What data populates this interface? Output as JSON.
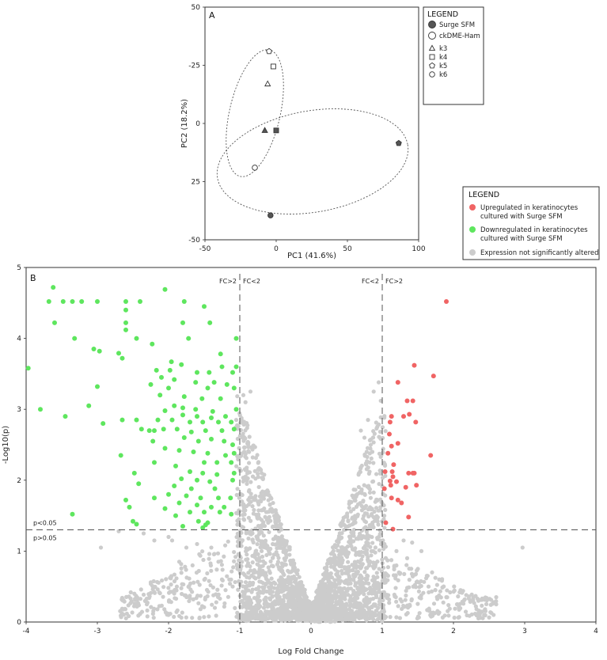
{
  "chart_data": [
    {
      "type": "scatter",
      "panel_label": "A",
      "xlabel": "PC1 (41.6%)",
      "ylabel": "PC2 (18.2%)",
      "xlim": [
        -50,
        100
      ],
      "ylim": [
        -50,
        50
      ],
      "x_ticks": [
        -50,
        0,
        50,
        100
      ],
      "y_ticks": [
        -50,
        -25,
        0,
        25,
        50
      ],
      "x_tick_labels": [
        "-50",
        "0",
        "50",
        "100"
      ],
      "y_tick_labels": [
        "-50",
        "-25",
        "0",
        "25",
        "50"
      ],
      "y_axis_inverted_labels": [
        "-50",
        "25",
        "0",
        "-25",
        "50"
      ],
      "legend": {
        "title": "LEGEND",
        "entries": [
          {
            "label": "Surge SFM",
            "marker": "circle",
            "fill": "filled"
          },
          {
            "label": "ckDME-Ham",
            "marker": "circle",
            "fill": "open"
          },
          {
            "label": "k3",
            "marker": "triangle",
            "fill": "open"
          },
          {
            "label": "k4",
            "marker": "square",
            "fill": "open"
          },
          {
            "label": "k5",
            "marker": "pentagon",
            "fill": "open"
          },
          {
            "label": "k6",
            "marker": "circle-small",
            "fill": "open"
          }
        ]
      },
      "points": [
        {
          "x": -5,
          "y": 31,
          "marker": "pentagon",
          "fill": "open"
        },
        {
          "x": -2,
          "y": 24.5,
          "marker": "square",
          "fill": "open"
        },
        {
          "x": -6,
          "y": 17,
          "marker": "triangle",
          "fill": "open"
        },
        {
          "x": -8,
          "y": -3,
          "marker": "triangle",
          "fill": "filled"
        },
        {
          "x": 0,
          "y": -3,
          "marker": "square",
          "fill": "filled"
        },
        {
          "x": 86,
          "y": -8.5,
          "marker": "pentagon",
          "fill": "filled"
        },
        {
          "x": -15,
          "y": -19,
          "marker": "circle-small",
          "fill": "open"
        },
        {
          "x": -4,
          "y": -39.5,
          "marker": "circle-small",
          "fill": "filled"
        }
      ]
    },
    {
      "type": "scatter",
      "panel_label": "B",
      "xlabel": "Log Fold Change",
      "ylabel": "-Log10(p)",
      "xlim": [
        -4,
        4
      ],
      "ylim": [
        0,
        5
      ],
      "x_ticks": [
        -4,
        -3,
        -2,
        -1,
        0,
        1,
        2,
        3,
        4
      ],
      "y_ticks": [
        0,
        1,
        2,
        3,
        4,
        5
      ],
      "thresholds": {
        "fc_lines": [
          -1,
          1
        ],
        "p_line": 1.3,
        "labels": {
          "left_outer": "FC>2",
          "left_inner": "FC<2",
          "right_inner": "FC<2",
          "right_outer": "FC>2",
          "p_above": "p<0.05",
          "p_below": "p>0.05"
        }
      },
      "legend": {
        "title": "LEGEND",
        "entries": [
          {
            "label": "Upregulated  in keratinocytes cultured with Surge SFM",
            "color": "#f06464"
          },
          {
            "label": "Downregulated in keratinocytes cultured with Surge SFM",
            "color": "#5ee65e"
          },
          {
            "label": "Expression not significantly altered",
            "color": "#cccccc"
          }
        ]
      },
      "colors": {
        "up": "#f06464",
        "down": "#5ee65e",
        "ns": "#cccccc"
      },
      "up_points": [
        [
          1.9,
          4.52
        ],
        [
          1.72,
          3.47
        ],
        [
          1.45,
          3.62
        ],
        [
          1.22,
          3.38
        ],
        [
          1.35,
          3.12
        ],
        [
          1.43,
          3.12
        ],
        [
          1.47,
          2.82
        ],
        [
          1.38,
          2.93
        ],
        [
          1.13,
          2.9
        ],
        [
          1.3,
          2.9
        ],
        [
          1.11,
          2.82
        ],
        [
          1.1,
          2.65
        ],
        [
          1.13,
          2.48
        ],
        [
          1.22,
          2.52
        ],
        [
          1.08,
          2.38
        ],
        [
          1.68,
          2.35
        ],
        [
          1.16,
          2.22
        ],
        [
          1.04,
          2.12
        ],
        [
          1.14,
          2.12
        ],
        [
          1.37,
          2.1
        ],
        [
          1.43,
          2.1
        ],
        [
          1.45,
          2.1
        ],
        [
          1.15,
          2.05
        ],
        [
          1.11,
          1.99
        ],
        [
          1.2,
          1.98
        ],
        [
          1.48,
          1.93
        ],
        [
          1.12,
          1.93
        ],
        [
          1.03,
          1.88
        ],
        [
          1.33,
          1.9
        ],
        [
          1.13,
          1.75
        ],
        [
          1.22,
          1.72
        ],
        [
          1.27,
          1.68
        ],
        [
          1.37,
          1.48
        ],
        [
          1.05,
          1.4
        ],
        [
          1.15,
          1.31
        ]
      ],
      "down_points": [
        [
          -3.62,
          4.72
        ],
        [
          -3.35,
          4.52
        ],
        [
          -3.48,
          4.52
        ],
        [
          -3.68,
          4.52
        ],
        [
          -3.22,
          4.52
        ],
        [
          -3.0,
          4.52
        ],
        [
          -2.6,
          4.52
        ],
        [
          -2.4,
          4.52
        ],
        [
          -2.05,
          4.69
        ],
        [
          -1.78,
          4.52
        ],
        [
          -1.5,
          4.45
        ],
        [
          -2.6,
          4.4
        ],
        [
          -3.6,
          4.22
        ],
        [
          -2.6,
          4.22
        ],
        [
          -2.6,
          4.12
        ],
        [
          -1.8,
          4.22
        ],
        [
          -1.42,
          4.22
        ],
        [
          -3.32,
          4.0
        ],
        [
          -2.45,
          4.0
        ],
        [
          -1.72,
          4.0
        ],
        [
          -2.23,
          3.92
        ],
        [
          -1.05,
          4.0
        ],
        [
          -3.05,
          3.85
        ],
        [
          -2.97,
          3.82
        ],
        [
          -2.7,
          3.79
        ],
        [
          -1.27,
          3.78
        ],
        [
          -2.65,
          3.72
        ],
        [
          -1.96,
          3.67
        ],
        [
          -1.82,
          3.63
        ],
        [
          -1.05,
          3.6
        ],
        [
          -2.17,
          3.55
        ],
        [
          -1.98,
          3.55
        ],
        [
          -1.6,
          3.52
        ],
        [
          -1.43,
          3.52
        ],
        [
          -1.25,
          3.6
        ],
        [
          -1.1,
          3.52
        ],
        [
          -2.1,
          3.45
        ],
        [
          -1.92,
          3.42
        ],
        [
          -1.62,
          3.38
        ],
        [
          -1.36,
          3.38
        ],
        [
          -1.18,
          3.35
        ],
        [
          -3.97,
          3.58
        ],
        [
          -3.0,
          3.32
        ],
        [
          -2.25,
          3.35
        ],
        [
          -2.0,
          3.3
        ],
        [
          -1.45,
          3.3
        ],
        [
          -1.08,
          3.3
        ],
        [
          -2.12,
          3.2
        ],
        [
          -1.78,
          3.18
        ],
        [
          -1.53,
          3.15
        ],
        [
          -1.27,
          3.15
        ],
        [
          -3.12,
          3.05
        ],
        [
          -1.92,
          3.05
        ],
        [
          -1.8,
          3.02
        ],
        [
          -1.62,
          3.0
        ],
        [
          -1.38,
          2.97
        ],
        [
          -1.05,
          3.0
        ],
        [
          -3.8,
          3.0
        ],
        [
          -2.05,
          2.98
        ],
        [
          -1.8,
          2.92
        ],
        [
          -1.6,
          2.9
        ],
        [
          -1.4,
          2.88
        ],
        [
          -1.2,
          2.9
        ],
        [
          -3.45,
          2.9
        ],
        [
          -2.45,
          2.85
        ],
        [
          -2.15,
          2.85
        ],
        [
          -1.95,
          2.85
        ],
        [
          -1.7,
          2.82
        ],
        [
          -1.52,
          2.82
        ],
        [
          -1.3,
          2.82
        ],
        [
          -1.12,
          2.82
        ],
        [
          -2.92,
          2.8
        ],
        [
          -2.65,
          2.85
        ],
        [
          -2.38,
          2.72
        ],
        [
          -2.2,
          2.7
        ],
        [
          -2.07,
          2.72
        ],
        [
          -1.88,
          2.72
        ],
        [
          -1.68,
          2.68
        ],
        [
          -1.48,
          2.7
        ],
        [
          -1.25,
          2.7
        ],
        [
          -1.08,
          2.72
        ],
        [
          -2.27,
          2.7
        ],
        [
          -1.78,
          2.6
        ],
        [
          -1.58,
          2.55
        ],
        [
          -1.4,
          2.58
        ],
        [
          -1.22,
          2.55
        ],
        [
          -1.1,
          2.5
        ],
        [
          -2.22,
          2.55
        ],
        [
          -2.05,
          2.45
        ],
        [
          -1.85,
          2.42
        ],
        [
          -1.65,
          2.4
        ],
        [
          -1.45,
          2.38
        ],
        [
          -1.2,
          2.35
        ],
        [
          -1.08,
          2.38
        ],
        [
          -2.67,
          2.35
        ],
        [
          -1.5,
          2.25
        ],
        [
          -1.32,
          2.25
        ],
        [
          -1.12,
          2.25
        ],
        [
          -2.2,
          2.25
        ],
        [
          -1.9,
          2.2
        ],
        [
          -1.7,
          2.12
        ],
        [
          -1.52,
          2.1
        ],
        [
          -1.32,
          2.08
        ],
        [
          -1.08,
          2.1
        ],
        [
          -2.48,
          2.1
        ],
        [
          -1.82,
          2.02
        ],
        [
          -1.6,
          2.0
        ],
        [
          -1.42,
          1.98
        ],
        [
          -1.1,
          2.0
        ],
        [
          -2.42,
          1.95
        ],
        [
          -1.92,
          1.92
        ],
        [
          -1.68,
          1.88
        ],
        [
          -1.35,
          1.88
        ],
        [
          -2.0,
          1.8
        ],
        [
          -1.75,
          1.78
        ],
        [
          -1.55,
          1.75
        ],
        [
          -1.3,
          1.75
        ],
        [
          -1.13,
          1.75
        ],
        [
          -2.2,
          1.75
        ],
        [
          -2.6,
          1.72
        ],
        [
          -1.85,
          1.68
        ],
        [
          -1.6,
          1.65
        ],
        [
          -1.4,
          1.62
        ],
        [
          -1.22,
          1.62
        ],
        [
          -2.05,
          1.6
        ],
        [
          -2.55,
          1.62
        ],
        [
          -1.7,
          1.55
        ],
        [
          -1.5,
          1.55
        ],
        [
          -1.28,
          1.55
        ],
        [
          -1.12,
          1.52
        ],
        [
          -1.9,
          1.5
        ],
        [
          -3.35,
          1.52
        ],
        [
          -1.58,
          1.42
        ],
        [
          -1.45,
          1.4
        ],
        [
          -2.5,
          1.42
        ],
        [
          -1.8,
          1.35
        ],
        [
          -1.52,
          1.33
        ],
        [
          -1.48,
          1.37
        ],
        [
          -2.45,
          1.38
        ]
      ],
      "ns_sparse": [
        [
          -2.7,
          1.28
        ],
        [
          -2.35,
          1.25
        ],
        [
          -1.95,
          1.15
        ],
        [
          -2.0,
          1.2
        ],
        [
          -1.75,
          1.05
        ],
        [
          -1.6,
          1.1
        ],
        [
          -2.95,
          1.05
        ],
        [
          -2.2,
          1.15
        ],
        [
          -1.85,
          0.85
        ],
        [
          -1.3,
          0.85
        ],
        [
          -1.4,
          1.05
        ],
        [
          -1.25,
          0.6
        ],
        [
          -1.1,
          0.5
        ],
        [
          -1.35,
          0.2
        ],
        [
          -1.2,
          0.45
        ],
        [
          2.97,
          1.05
        ],
        [
          2.6,
          0.35
        ],
        [
          2.6,
          0.25
        ],
        [
          2.35,
          0.3
        ],
        [
          2.25,
          0.3
        ],
        [
          2.1,
          0.45
        ],
        [
          1.8,
          0.6
        ],
        [
          1.7,
          0.7
        ],
        [
          1.65,
          0.5
        ],
        [
          1.55,
          1.0
        ],
        [
          1.42,
          1.12
        ],
        [
          1.35,
          0.9
        ],
        [
          1.3,
          1.15
        ],
        [
          1.2,
          1.0
        ],
        [
          1.9,
          0.35
        ],
        [
          2.05,
          0.25
        ],
        [
          1.5,
          0.75
        ],
        [
          0.75,
          2.6
        ],
        [
          0.7,
          2.7
        ],
        [
          0.8,
          2.85
        ],
        [
          0.98,
          3.12
        ],
        [
          0.95,
          3.38
        ],
        [
          0.88,
          3.25
        ],
        [
          -0.85,
          3.25
        ],
        [
          -0.95,
          3.2
        ],
        [
          -0.92,
          3.1
        ],
        [
          -1.05,
          2.85
        ]
      ]
    }
  ]
}
